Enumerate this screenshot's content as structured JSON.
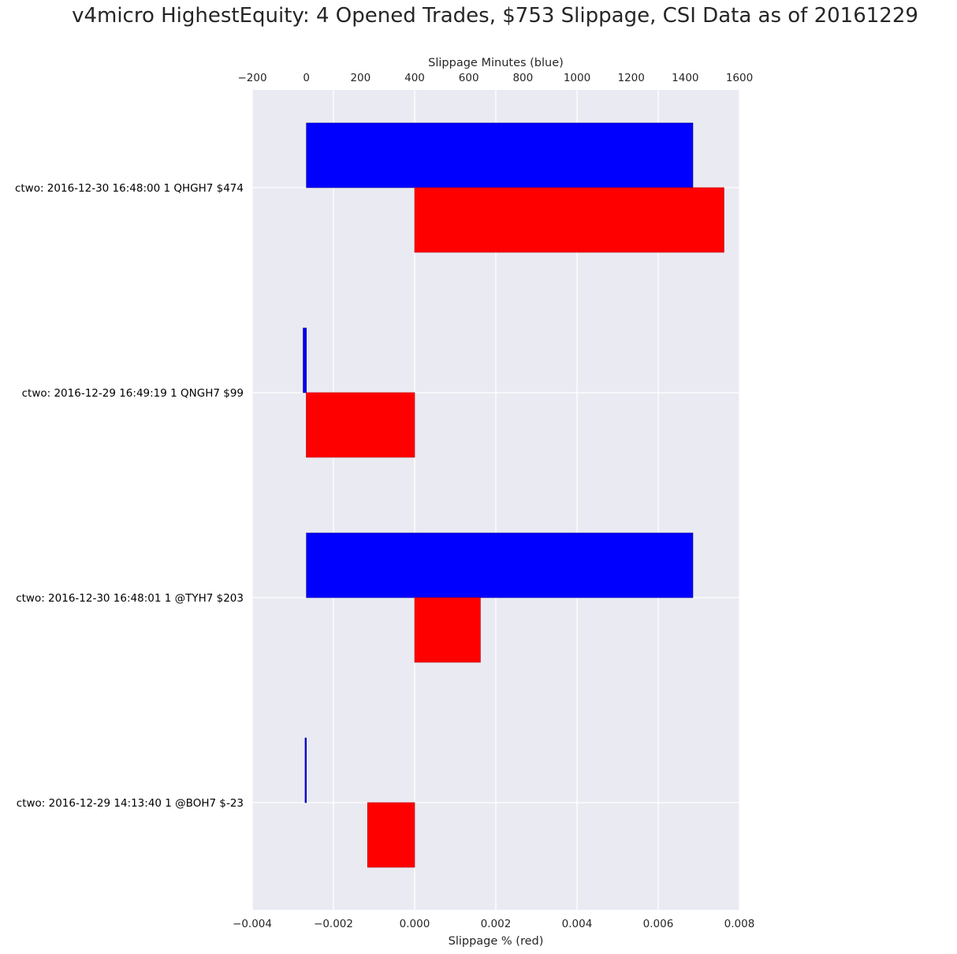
{
  "title": "v4micro HighestEquity: 4 Opened Trades, $753 Slippage, CSI Data as of 20161229",
  "chart_data": {
    "type": "bar",
    "orientation": "horizontal",
    "title": "v4micro HighestEquity: 4 Opened Trades, $753 Slippage, CSI Data as of 20161229",
    "categories": [
      "ctwo: 2016-12-30 16:48:00 1 QHGH7 $474",
      "ctwo: 2016-12-29 16:49:19 1 QNGH7 $99",
      "ctwo: 2016-12-30 16:48:01 1 @TYH7 $203",
      "ctwo: 2016-12-29 14:13:40 1 @BOH7 $-23"
    ],
    "series": [
      {
        "name": "Slippage Minutes (blue)",
        "axis": "top",
        "color": "#0000ff",
        "values": [
          1428,
          -12,
          1428,
          -5
        ]
      },
      {
        "name": "Slippage % (red)",
        "axis": "bottom",
        "color": "#ff0000",
        "values": [
          0.00762,
          -0.00267,
          0.00162,
          -0.00116
        ]
      }
    ],
    "top_axis": {
      "label": "Slippage Minutes (blue)",
      "range": [
        -200,
        1600
      ],
      "ticks": [
        "−200",
        "0",
        "200",
        "400",
        "600",
        "800",
        "1000",
        "1200",
        "1400",
        "1600"
      ]
    },
    "bottom_axis": {
      "label": "Slippage % (red)",
      "range": [
        -0.004,
        0.008
      ],
      "ticks": [
        "−0.004",
        "−0.002",
        "0.000",
        "0.002",
        "0.004",
        "0.006",
        "0.008"
      ]
    },
    "grid": true,
    "colors": {
      "background": "#eaeaf2",
      "grid": "#ffffff"
    }
  }
}
